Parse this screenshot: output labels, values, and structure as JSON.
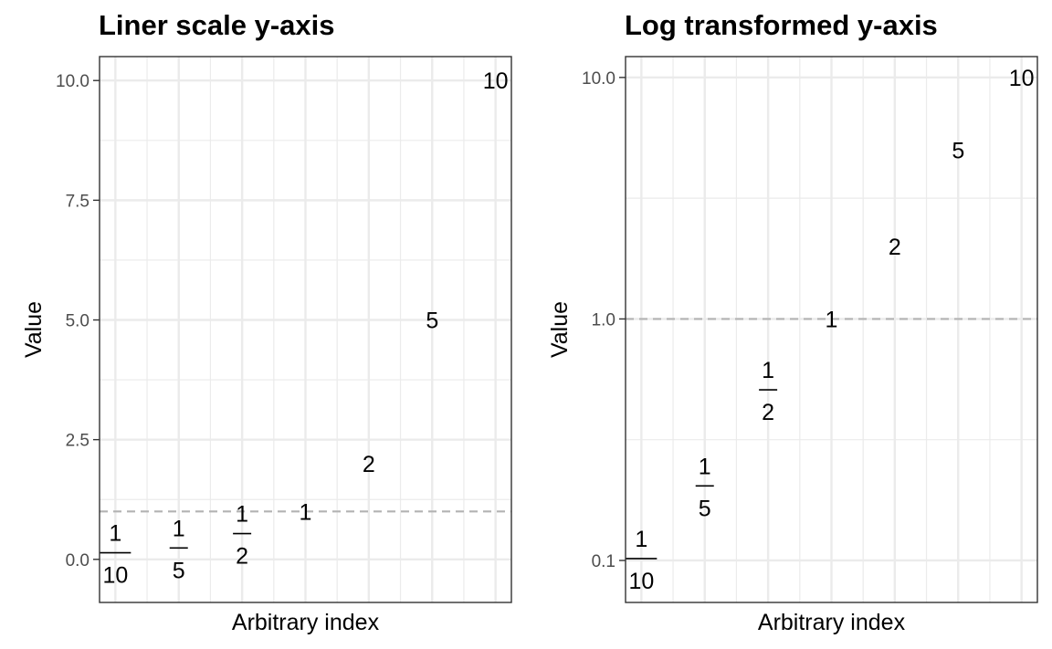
{
  "chart_data": [
    {
      "type": "scatter",
      "mark": "text-label",
      "title": "Liner scale y-axis",
      "xlabel": "Arbitrary index",
      "ylabel": "Value",
      "yscale": "linear",
      "ylim": [
        -0.9,
        10.5
      ],
      "y_ticks": [
        0.0,
        2.5,
        5.0,
        7.5,
        10.0
      ],
      "y_tick_labels": [
        "0.0",
        "2.5",
        "5.0",
        "7.5",
        "10.0"
      ],
      "xlim": [
        0.75,
        7.25
      ],
      "x_gridlines": [
        1,
        2,
        3,
        4,
        5,
        6,
        7
      ],
      "x_tick_labels": [],
      "grid": true,
      "reference_line": {
        "y": 1,
        "style": "dashed",
        "color": "#b3b3b3"
      },
      "points": [
        {
          "x": 1,
          "y": 0.1,
          "label_num": "1",
          "label_den": "10"
        },
        {
          "x": 2,
          "y": 0.2,
          "label_num": "1",
          "label_den": "5"
        },
        {
          "x": 3,
          "y": 0.5,
          "label_num": "1",
          "label_den": "2"
        },
        {
          "x": 4,
          "y": 1,
          "label": "1"
        },
        {
          "x": 5,
          "y": 2,
          "label": "2"
        },
        {
          "x": 6,
          "y": 5,
          "label": "5"
        },
        {
          "x": 7,
          "y": 10,
          "label": "10"
        }
      ]
    },
    {
      "type": "scatter",
      "mark": "text-label",
      "title": "Log transformed y-axis",
      "xlabel": "Arbitrary index",
      "ylabel": "Value",
      "yscale": "log10",
      "ylim": [
        0.067,
        12.2
      ],
      "y_ticks": [
        0.1,
        1.0,
        10.0
      ],
      "y_tick_labels": [
        "0.1",
        "1.0",
        "10.0"
      ],
      "xlim": [
        0.75,
        7.25
      ],
      "x_gridlines": [
        1,
        2,
        3,
        4,
        5,
        6,
        7
      ],
      "x_tick_labels": [],
      "grid": true,
      "reference_line": {
        "y": 1,
        "style": "dashed",
        "color": "#b3b3b3"
      },
      "points": [
        {
          "x": 1,
          "y": 0.1,
          "label_num": "1",
          "label_den": "10"
        },
        {
          "x": 2,
          "y": 0.2,
          "label_num": "1",
          "label_den": "5"
        },
        {
          "x": 3,
          "y": 0.5,
          "label_num": "1",
          "label_den": "2"
        },
        {
          "x": 4,
          "y": 1,
          "label": "1"
        },
        {
          "x": 5,
          "y": 2,
          "label": "2"
        },
        {
          "x": 6,
          "y": 5,
          "label": "5"
        },
        {
          "x": 7,
          "y": 10,
          "label": "10"
        }
      ]
    }
  ]
}
